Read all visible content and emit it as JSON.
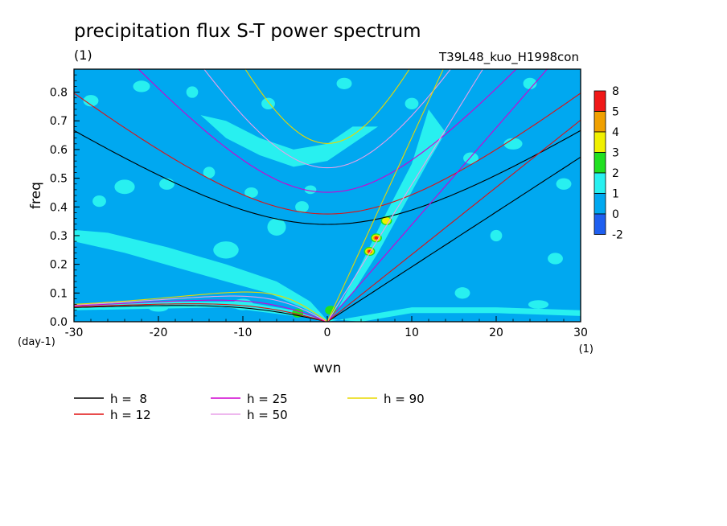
{
  "chart_data": {
    "type": "heatmap",
    "title": "precipitation flux S-T power spectrum",
    "subtitle_left": "(1)",
    "subtitle_right": "T39L48_kuo_H1998con",
    "xlabel": "wvn",
    "ylabel": "freq",
    "x_unit": "(1)",
    "y_unit": "(day-1)",
    "xlim": [
      -30,
      30
    ],
    "ylim": [
      0.0,
      0.88
    ],
    "x_ticks": [
      -30,
      -20,
      -10,
      0,
      10,
      20,
      30
    ],
    "x_tick_labels": [
      "-30",
      "-20",
      "-10",
      "0",
      "10",
      "20",
      "30"
    ],
    "y_ticks": [
      0.0,
      0.1,
      0.2,
      0.3,
      0.4,
      0.5,
      0.6,
      0.7,
      0.8
    ],
    "y_tick_labels": [
      "0.0",
      "0.1",
      "0.2",
      "0.3",
      "0.4",
      "0.5",
      "0.6",
      "0.7",
      "0.8"
    ],
    "colorbar": {
      "labels": [
        "8",
        "5",
        "4",
        "3",
        "2",
        "1",
        "0",
        "-2"
      ],
      "colors": [
        "#f01818",
        "#f0a000",
        "#f0f000",
        "#20e020",
        "#28f0f0",
        "#00a8f0",
        "#1e5ff0"
      ]
    },
    "field_levels": {
      "background": "#00a8f0",
      "level1": "#28f0f0",
      "level2": "#20e020",
      "level3": "#f0f000",
      "level4": "#f0a000",
      "level5": "#f01818"
    },
    "hotspots": [
      {
        "x": 5.0,
        "y": 0.245,
        "peak": 5
      },
      {
        "x": 5.8,
        "y": 0.292,
        "peak": 5
      },
      {
        "x": 7.0,
        "y": 0.352,
        "peak": 3
      },
      {
        "x": -3.5,
        "y": 0.03,
        "peak": 2
      },
      {
        "x": 0.4,
        "y": 0.04,
        "peak": 2
      }
    ],
    "dispersion_curves": [
      {
        "name": "h =  8",
        "h": 8,
        "color": "#000000"
      },
      {
        "name": "h = 12",
        "h": 12,
        "color": "#e01010"
      },
      {
        "name": "h = 25",
        "h": 25,
        "color": "#d000d0"
      },
      {
        "name": "h = 50",
        "h": 50,
        "color": "#e8a0e8"
      },
      {
        "name": "h = 90",
        "h": 90,
        "color": "#e8d800"
      }
    ]
  }
}
